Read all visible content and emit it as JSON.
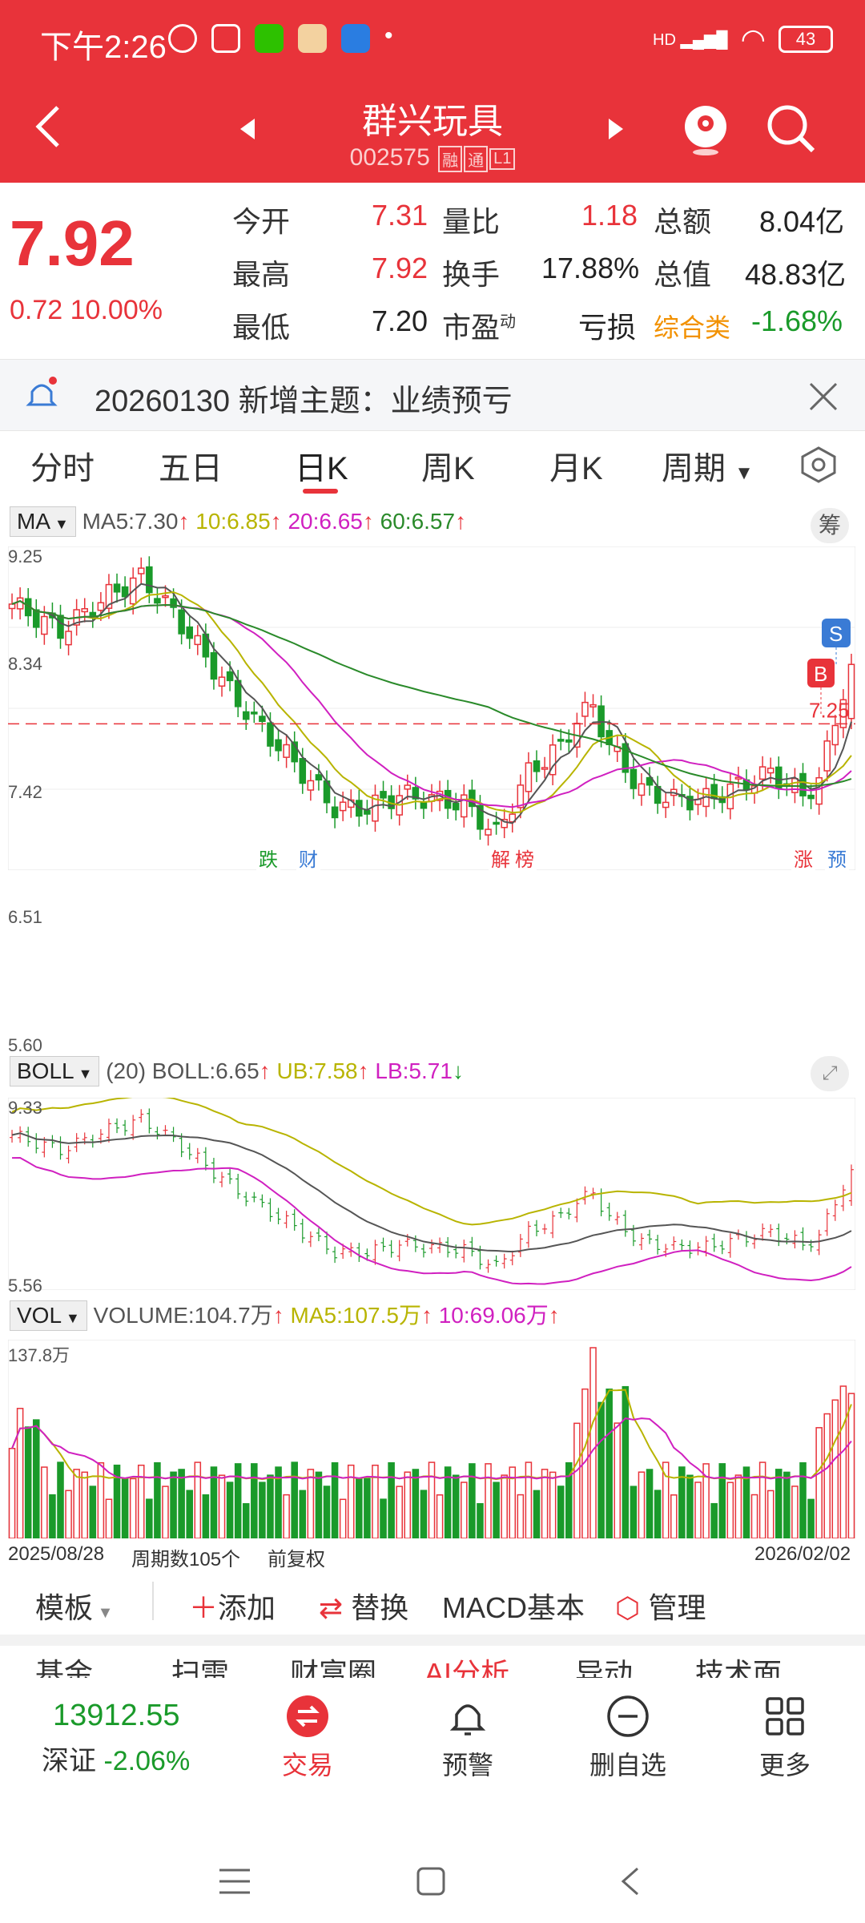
{
  "status_bar": {
    "time": "下午2:26",
    "network": "HD",
    "battery": "43"
  },
  "header": {
    "title": "群兴玩具",
    "code": "002575",
    "tags": [
      "融",
      "通",
      "L1"
    ]
  },
  "quote": {
    "price": "7.92",
    "change": "0.72",
    "change_pct": "10.00%",
    "fields": [
      {
        "label": "今开",
        "value": "7.31"
      },
      {
        "label": "量比",
        "value": "1.18"
      },
      {
        "label": "总额",
        "value": "8.04亿"
      },
      {
        "label": "最高",
        "value": "7.92"
      },
      {
        "label": "换手",
        "value": "17.88%"
      },
      {
        "label": "总值",
        "value": "48.83亿"
      },
      {
        "label": "最低",
        "value": "7.20"
      },
      {
        "label": "市盈",
        "sup": "动",
        "value": "亏损"
      },
      {
        "label": "综合类",
        "value": "-1.68%"
      }
    ]
  },
  "notice": {
    "text": "20260130 新增主题：业绩预亏"
  },
  "tabs": [
    "分时",
    "五日",
    "日K",
    "周K",
    "月K",
    "周期"
  ],
  "active_tab": "日K",
  "ma_legend": {
    "selector": "MA",
    "ma5": "MA5:7.30",
    "ma10": "10:6.85",
    "ma20": "20:6.65",
    "ma60": "60:6.57",
    "chip_button": "筹"
  },
  "kline": {
    "y_ticks": [
      "9.25",
      "8.34",
      "7.42",
      "6.51",
      "5.60"
    ],
    "ref_price": "7.25",
    "markers": [
      "跌",
      "财",
      "解",
      "榜",
      "涨",
      "预"
    ],
    "b_label": "B",
    "s_label": "S"
  },
  "boll_legend": {
    "selector": "BOLL",
    "param": "(20)",
    "boll": "BOLL:6.65",
    "ub": "UB:7.58",
    "lb": "LB:5.71",
    "y_top": "9.33",
    "y_bottom": "5.56"
  },
  "vol_legend": {
    "selector": "VOL",
    "volume": "VOLUME:104.7万",
    "ma5": "MA5:107.5万",
    "ma10": "10:69.06万",
    "y_top": "137.8万"
  },
  "x_axis": {
    "start": "2025/08/28",
    "period_count": "周期数105个",
    "adjust": "前复权",
    "end": "2026/02/02"
  },
  "toolbar": {
    "template": "模板",
    "add": "添加",
    "replace": "替换",
    "indicator": "MACD基本",
    "manage": "管理"
  },
  "more_tabs": [
    "基金",
    "扫雷",
    "财富圈",
    "AI分析",
    "异动",
    "技术面"
  ],
  "bottom_nav": {
    "index_value": "13912.55",
    "index_name": "深证",
    "index_change": "-2.06%",
    "items": [
      "交易",
      "预警",
      "删自选",
      "更多"
    ]
  },
  "colors": {
    "up": "#e8333a",
    "down": "#1a9a2a",
    "header": "#e8333a",
    "ma10": "#b8b400",
    "ma20": "#d020c0",
    "ma60": "#2a8a2a"
  },
  "chart_data": {
    "type": "candlestick",
    "y_range": [
      5.6,
      9.25
    ],
    "points": 105,
    "last_close": 7.92,
    "reference_line": 7.25
  }
}
